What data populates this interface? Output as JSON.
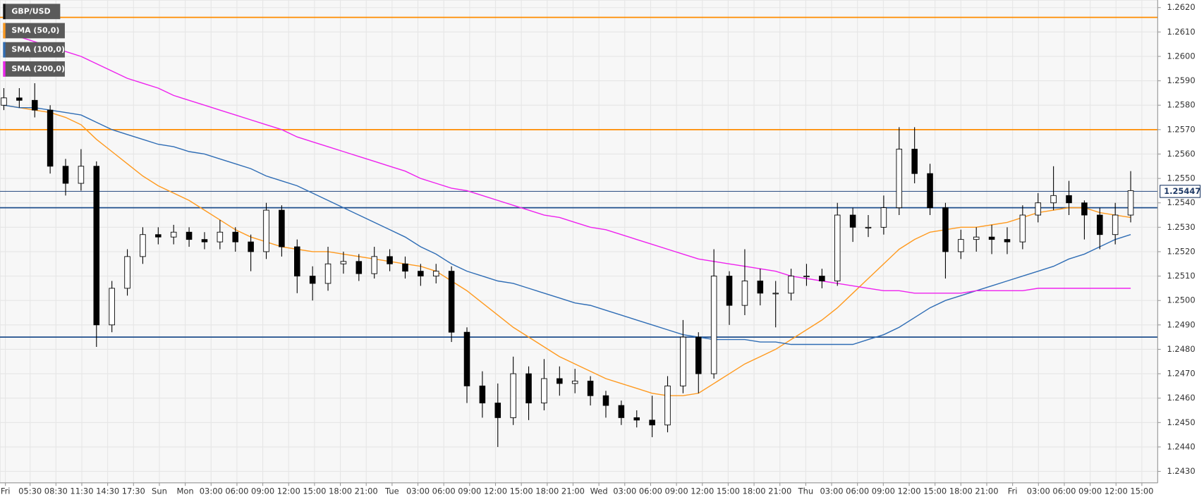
{
  "chart_data": {
    "type": "candlestick",
    "name": "GBP/USD",
    "ylim": [
      1.24253,
      1.26231
    ],
    "yticks": [
      {
        "value": 1.243,
        "label": "1.2430"
      },
      {
        "value": 1.244,
        "label": "1.2440"
      },
      {
        "value": 1.245,
        "label": "1.2450"
      },
      {
        "value": 1.246,
        "label": "1.2460"
      },
      {
        "value": 1.247,
        "label": "1.2470"
      },
      {
        "value": 1.248,
        "label": "1.2480"
      },
      {
        "value": 1.249,
        "label": "1.2490"
      },
      {
        "value": 1.25,
        "label": "1.2500"
      },
      {
        "value": 1.251,
        "label": "1.2510"
      },
      {
        "value": 1.252,
        "label": "1.2520"
      },
      {
        "value": 1.253,
        "label": "1.2530"
      },
      {
        "value": 1.254,
        "label": "1.2540"
      },
      {
        "value": 1.255,
        "label": "1.2550"
      },
      {
        "value": 1.256,
        "label": "1.2560"
      },
      {
        "value": 1.257,
        "label": "1.2570"
      },
      {
        "value": 1.258,
        "label": "1.2580"
      },
      {
        "value": 1.259,
        "label": "1.2590"
      },
      {
        "value": 1.26,
        "label": "1.2600"
      },
      {
        "value": 1.261,
        "label": "1.2610"
      },
      {
        "value": 1.262,
        "label": "1.2620"
      }
    ],
    "xticks": [
      "Fri",
      "05:30",
      "08:30",
      "11:30",
      "14:30",
      "17:30",
      "Sun",
      "Mon",
      "03:00",
      "06:00",
      "09:00",
      "12:00",
      "15:00",
      "18:00",
      "21:00",
      "Tue",
      "03:00",
      "06:00",
      "09:00",
      "12:00",
      "15:00",
      "18:00",
      "21:00",
      "Wed",
      "03:00",
      "06:00",
      "09:00",
      "12:00",
      "15:00",
      "18:00",
      "21:00",
      "Thu",
      "03:00",
      "06:00",
      "09:00",
      "12:00",
      "15:00",
      "18:00",
      "21:00",
      "Fri",
      "03:00",
      "06:00",
      "09:00",
      "12:00",
      "15:00"
    ],
    "grid": true,
    "up_color": "#ffffff",
    "down_color": "#000000",
    "candles": [
      [
        1.258,
        1.2587,
        1.2578,
        1.2583
      ],
      [
        1.2583,
        1.2587,
        1.2579,
        1.2582
      ],
      [
        1.2582,
        1.2589,
        1.2575,
        1.2578
      ],
      [
        1.2578,
        1.258,
        1.2552,
        1.2555
      ],
      [
        1.2555,
        1.2558,
        1.2543,
        1.2548
      ],
      [
        1.2548,
        1.2562,
        1.2545,
        1.2555
      ],
      [
        1.2555,
        1.2557,
        1.2481,
        1.249
      ],
      [
        1.249,
        1.2508,
        1.2487,
        1.2505
      ],
      [
        1.2505,
        1.2521,
        1.2502,
        1.2518
      ],
      [
        1.2518,
        1.253,
        1.2515,
        1.2527
      ],
      [
        1.2527,
        1.253,
        1.2523,
        1.2526
      ],
      [
        1.2526,
        1.2531,
        1.2523,
        1.2528
      ],
      [
        1.2528,
        1.253,
        1.2522,
        1.2525
      ],
      [
        1.2525,
        1.2528,
        1.2521,
        1.2524
      ],
      [
        1.2524,
        1.2533,
        1.2521,
        1.2528
      ],
      [
        1.2528,
        1.253,
        1.252,
        1.2524
      ],
      [
        1.2524,
        1.2527,
        1.2512,
        1.252
      ],
      [
        1.252,
        1.254,
        1.2517,
        1.2537
      ],
      [
        1.2537,
        1.2539,
        1.2518,
        1.2522
      ],
      [
        1.2522,
        1.2525,
        1.2503,
        1.251
      ],
      [
        1.251,
        1.2514,
        1.25,
        1.2507
      ],
      [
        1.2507,
        1.2522,
        1.2504,
        1.2515
      ],
      [
        1.2515,
        1.252,
        1.2511,
        1.2516
      ],
      [
        1.2516,
        1.2519,
        1.2508,
        1.2511
      ],
      [
        1.2511,
        1.2522,
        1.2509,
        1.2518
      ],
      [
        1.2518,
        1.2521,
        1.2512,
        1.2515
      ],
      [
        1.2515,
        1.2518,
        1.2509,
        1.2512
      ],
      [
        1.2512,
        1.2515,
        1.2506,
        1.251
      ],
      [
        1.251,
        1.2515,
        1.2507,
        1.2512
      ],
      [
        1.2512,
        1.2514,
        1.2483,
        1.2487
      ],
      [
        1.2487,
        1.2489,
        1.2458,
        1.2465
      ],
      [
        1.2465,
        1.2471,
        1.2452,
        1.2458
      ],
      [
        1.2458,
        1.2466,
        1.244,
        1.2452
      ],
      [
        1.2452,
        1.2477,
        1.2449,
        1.247
      ],
      [
        1.247,
        1.2473,
        1.2451,
        1.2458
      ],
      [
        1.2458,
        1.2476,
        1.2455,
        1.2468
      ],
      [
        1.2468,
        1.2473,
        1.2461,
        1.2466
      ],
      [
        1.2466,
        1.2472,
        1.2462,
        1.2467
      ],
      [
        1.2467,
        1.2469,
        1.2457,
        1.2461
      ],
      [
        1.2461,
        1.2463,
        1.2452,
        1.2457
      ],
      [
        1.2457,
        1.2459,
        1.2449,
        1.2452
      ],
      [
        1.2452,
        1.2455,
        1.2448,
        1.2451
      ],
      [
        1.2451,
        1.2461,
        1.2444,
        1.2449
      ],
      [
        1.2449,
        1.2469,
        1.2446,
        1.2465
      ],
      [
        1.2465,
        1.2492,
        1.2462,
        1.2485
      ],
      [
        1.2485,
        1.2487,
        1.2462,
        1.247
      ],
      [
        1.247,
        1.2521,
        1.2468,
        1.251
      ],
      [
        1.251,
        1.2512,
        1.249,
        1.2498
      ],
      [
        1.2498,
        1.2521,
        1.2494,
        1.2508
      ],
      [
        1.2508,
        1.2513,
        1.2498,
        1.2503
      ],
      [
        1.2503,
        1.2508,
        1.2489,
        1.2503
      ],
      [
        1.2503,
        1.2513,
        1.25,
        1.251
      ],
      [
        1.251,
        1.2515,
        1.2506,
        1.251
      ],
      [
        1.251,
        1.2513,
        1.2505,
        1.2508
      ],
      [
        1.2508,
        1.254,
        1.2506,
        1.2535
      ],
      [
        1.2535,
        1.2538,
        1.2524,
        1.253
      ],
      [
        1.253,
        1.2535,
        1.2526,
        1.253
      ],
      [
        1.253,
        1.2543,
        1.2527,
        1.2538
      ],
      [
        1.2538,
        1.2571,
        1.2535,
        1.2562
      ],
      [
        1.2562,
        1.2571,
        1.2548,
        1.2552
      ],
      [
        1.2552,
        1.2556,
        1.2535,
        1.2538
      ],
      [
        1.2538,
        1.254,
        1.2509,
        1.252
      ],
      [
        1.252,
        1.2529,
        1.2517,
        1.2525
      ],
      [
        1.2525,
        1.253,
        1.252,
        1.2526
      ],
      [
        1.2526,
        1.2531,
        1.2519,
        1.2525
      ],
      [
        1.2525,
        1.253,
        1.2519,
        1.2524
      ],
      [
        1.2524,
        1.2539,
        1.2521,
        1.2535
      ],
      [
        1.2535,
        1.2544,
        1.2532,
        1.254
      ],
      [
        1.254,
        1.2555,
        1.2537,
        1.2543
      ],
      [
        1.2543,
        1.2549,
        1.2535,
        1.254
      ],
      [
        1.254,
        1.2541,
        1.2525,
        1.2535
      ],
      [
        1.2535,
        1.2538,
        1.2521,
        1.2527
      ],
      [
        1.2527,
        1.254,
        1.2523,
        1.2535
      ],
      [
        1.2535,
        1.2553,
        1.2532,
        1.2545
      ]
    ],
    "series": [
      {
        "name": "SMA (50,0)",
        "color": "#ff9a1f",
        "values": [
          1.258,
          1.2579,
          1.2578,
          1.2577,
          1.2575,
          1.2572,
          1.2566,
          1.2561,
          1.2556,
          1.2551,
          1.2547,
          1.2544,
          1.2541,
          1.2537,
          1.2533,
          1.2529,
          1.2526,
          1.2524,
          1.2522,
          1.2521,
          1.252,
          1.252,
          1.2519,
          1.2518,
          1.2517,
          1.2516,
          1.2515,
          1.2514,
          1.2512,
          1.2508,
          1.2504,
          1.2499,
          1.2494,
          1.2489,
          1.2485,
          1.2481,
          1.2477,
          1.2474,
          1.2471,
          1.2468,
          1.2466,
          1.2464,
          1.2462,
          1.2461,
          1.2461,
          1.2462,
          1.2466,
          1.247,
          1.2474,
          1.2477,
          1.248,
          1.2484,
          1.2488,
          1.2492,
          1.2497,
          1.2503,
          1.2509,
          1.2515,
          1.2521,
          1.2525,
          1.2528,
          1.2529,
          1.253,
          1.253,
          1.2531,
          1.2532,
          1.2534,
          1.2536,
          1.2537,
          1.2538,
          1.2538,
          1.2536,
          1.2535,
          1.2534
        ]
      },
      {
        "name": "SMA (100,0)",
        "color": "#2f6db5",
        "values": [
          1.258,
          1.2579,
          1.2579,
          1.2578,
          1.2577,
          1.2576,
          1.2573,
          1.257,
          1.2568,
          1.2566,
          1.2564,
          1.2563,
          1.2561,
          1.256,
          1.2558,
          1.2556,
          1.2554,
          1.2551,
          1.2549,
          1.2547,
          1.2544,
          1.2541,
          1.2538,
          1.2535,
          1.2532,
          1.2529,
          1.2526,
          1.2522,
          1.2519,
          1.2515,
          1.2512,
          1.251,
          1.2508,
          1.2507,
          1.2505,
          1.2503,
          1.2501,
          1.2499,
          1.2498,
          1.2496,
          1.2494,
          1.2492,
          1.249,
          1.2488,
          1.2486,
          1.2485,
          1.2484,
          1.2484,
          1.2484,
          1.2483,
          1.2483,
          1.2482,
          1.2482,
          1.2482,
          1.2482,
          1.2482,
          1.2484,
          1.2486,
          1.2489,
          1.2493,
          1.2497,
          1.25,
          1.2502,
          1.2504,
          1.2506,
          1.2508,
          1.251,
          1.2512,
          1.2514,
          1.2517,
          1.2519,
          1.2522,
          1.2525,
          1.2527
        ]
      },
      {
        "name": "SMA (200,0)",
        "color": "#ee22ee",
        "values": [
          1.261,
          1.2608,
          1.2606,
          1.2604,
          1.2602,
          1.26,
          1.2597,
          1.2594,
          1.2591,
          1.2589,
          1.2587,
          1.2584,
          1.2582,
          1.258,
          1.2578,
          1.2576,
          1.2574,
          1.2572,
          1.257,
          1.2567,
          1.2565,
          1.2563,
          1.2561,
          1.2559,
          1.2557,
          1.2555,
          1.2553,
          1.255,
          1.2548,
          1.2546,
          1.2545,
          1.2543,
          1.2541,
          1.2539,
          1.2537,
          1.2535,
          1.2534,
          1.2532,
          1.253,
          1.2529,
          1.2527,
          1.2525,
          1.2523,
          1.2521,
          1.2519,
          1.2517,
          1.2516,
          1.2515,
          1.2514,
          1.2513,
          1.2512,
          1.251,
          1.2509,
          1.2508,
          1.2507,
          1.2506,
          1.2505,
          1.2504,
          1.2504,
          1.2503,
          1.2503,
          1.2503,
          1.2503,
          1.2504,
          1.2504,
          1.2504,
          1.2504,
          1.2505,
          1.2505,
          1.2505,
          1.2505,
          1.2505,
          1.2505,
          1.2505
        ]
      }
    ],
    "levels": [
      {
        "value": 1.2616,
        "color": "#ff8c00"
      },
      {
        "value": 1.257,
        "color": "#ff8c00"
      },
      {
        "value": 1.2538,
        "color": "#1f4e8c"
      },
      {
        "value": 1.2485,
        "color": "#1f4e8c"
      }
    ],
    "last_price": {
      "value": 1.25447,
      "color": "#3a5a8a"
    }
  }
}
